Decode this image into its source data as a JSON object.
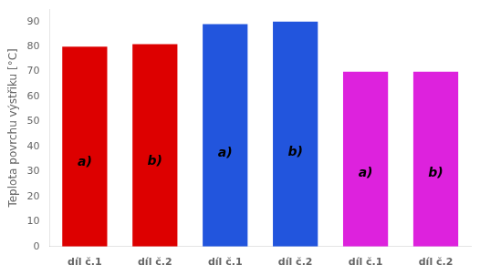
{
  "chart_data": {
    "type": "bar",
    "categories": [
      "díl č.1",
      "díl č.2",
      "díl č.1",
      "díl č.2",
      "díl č.1",
      "díl č.2"
    ],
    "values": [
      80,
      81,
      89,
      90,
      70,
      70
    ],
    "colors": [
      "#dd0000",
      "#dd0000",
      "#2255dd",
      "#2255dd",
      "#dd22dd",
      "#dd22dd"
    ],
    "annotations": [
      "a)",
      "b)",
      "a)",
      "b)",
      "a)",
      "b)"
    ],
    "ylabel": "Teplota povrchu výstřiku [°C]",
    "ylim": [
      0,
      95
    ],
    "yticks": [
      0,
      10,
      20,
      30,
      40,
      50,
      60,
      70,
      80,
      90
    ],
    "grid": false
  }
}
